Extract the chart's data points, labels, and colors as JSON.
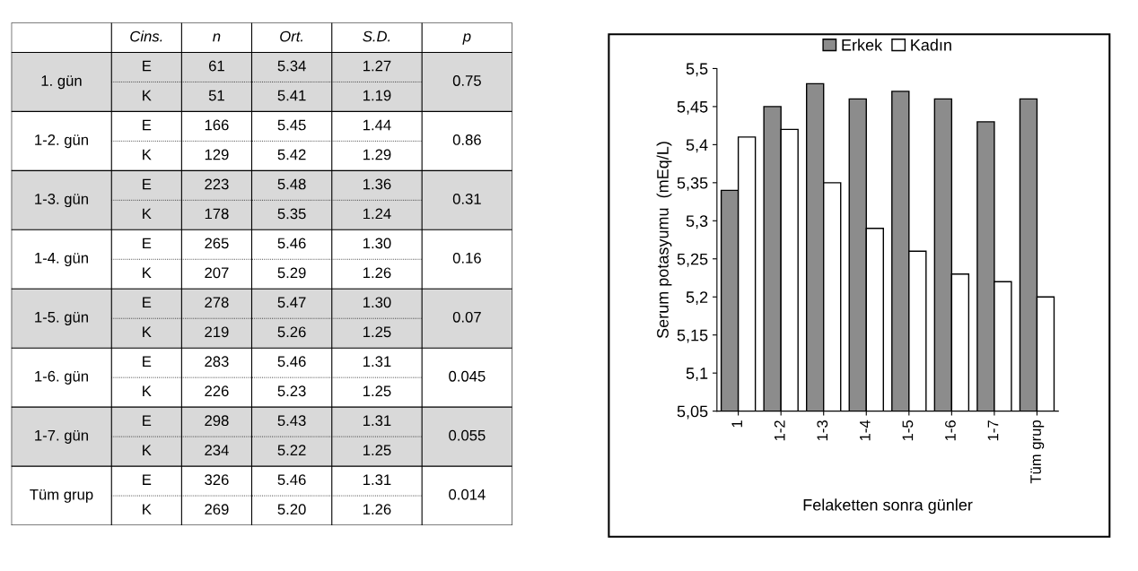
{
  "chart_data": [
    {
      "type": "other",
      "annotations": [
        "Cins.",
        "n",
        "Ort.",
        "S.D.",
        "p",
        "1. gün",
        "E",
        "61",
        "5.34",
        "1.27",
        "0.75",
        "K",
        "51",
        "5.41",
        "1.19",
        "1-2. gün",
        "E",
        "166",
        "5.45",
        "1.44",
        "0.86",
        "K",
        "129",
        "5.42",
        "1.29",
        "1-3. gün",
        "E",
        "223",
        "5.48",
        "1.36",
        "0.31",
        "K",
        "178",
        "5.35",
        "1.24",
        "1-4. gün",
        "E",
        "265",
        "5.46",
        "1.30",
        "0.16",
        "K",
        "207",
        "5.29",
        "1.26",
        "1-5. gün",
        "E",
        "278",
        "5.47",
        "1.30",
        "0.07",
        "K",
        "219",
        "5.26",
        "1.25",
        "1-6. gün",
        "E",
        "283",
        "5.46",
        "1.31",
        "0.045",
        "K",
        "226",
        "5.23",
        "1.25",
        "1-7. gün",
        "E",
        "298",
        "5.43",
        "1.31",
        "0.055",
        "K",
        "234",
        "5.22",
        "1.25",
        "Tüm grup",
        "E",
        "326",
        "5.46",
        "1.31",
        "0.014",
        "K",
        "269",
        "5.20",
        "1.26"
      ]
    },
    {
      "type": "bar",
      "xlabel": "Felaketten sonra günler",
      "ylabel": "Serum potasyumu  (mEq/L)",
      "categories": [
        "1",
        "1-2",
        "1-3",
        "1-4",
        "1-5",
        "1-6",
        "1-7",
        "Tüm grup"
      ],
      "series": [
        {
          "name": "Erkek",
          "color": "#8c8c8c",
          "values": [
            5.34,
            5.45,
            5.48,
            5.46,
            5.47,
            5.46,
            5.43,
            5.46
          ]
        },
        {
          "name": "Kadın",
          "color": "#ffffff",
          "values": [
            5.41,
            5.42,
            5.35,
            5.29,
            5.26,
            5.23,
            5.22,
            5.2
          ]
        }
      ],
      "ylim": [
        5.05,
        5.5
      ],
      "yticks": [
        {
          "value": 5.05,
          "label": "5,05"
        },
        {
          "value": 5.1,
          "label": "5,1"
        },
        {
          "value": 5.15,
          "label": "5,15"
        },
        {
          "value": 5.2,
          "label": "5,2"
        },
        {
          "value": 5.25,
          "label": "5,25"
        },
        {
          "value": 5.3,
          "label": "5,3"
        },
        {
          "value": 5.35,
          "label": "5,35"
        },
        {
          "value": 5.4,
          "label": "5,4"
        },
        {
          "value": 5.45,
          "label": "5,45"
        },
        {
          "value": 5.5,
          "label": "5,5"
        }
      ],
      "legend": "top",
      "grid": false
    }
  ]
}
